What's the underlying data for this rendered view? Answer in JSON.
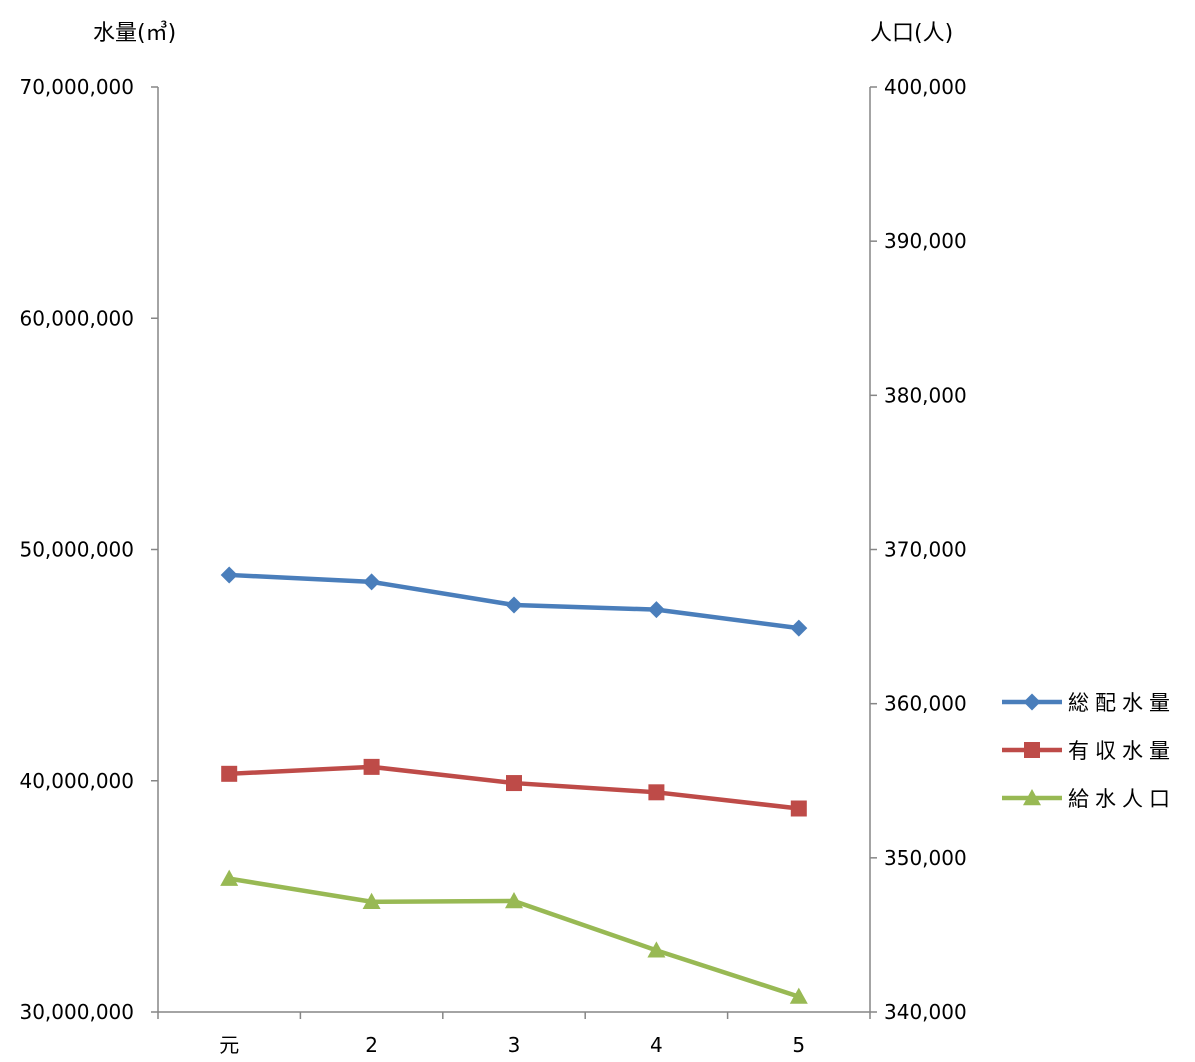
{
  "chart_data": {
    "type": "line",
    "categories": [
      "元",
      "2",
      "3",
      "4",
      "5"
    ],
    "left_axis": {
      "title": "水量(㎥)",
      "range": [
        30000000,
        70000000
      ],
      "ticks": [
        {
          "value": 70000000,
          "label": "70,000,000"
        },
        {
          "value": 60000000,
          "label": "60,000,000"
        },
        {
          "value": 50000000,
          "label": "50,000,000"
        },
        {
          "value": 40000000,
          "label": "40,000,000"
        },
        {
          "value": 30000000,
          "label": "30,000,000"
        }
      ]
    },
    "right_axis": {
      "title": "人口(人)",
      "range": [
        340000,
        400000
      ],
      "ticks": [
        {
          "value": 400000,
          "label": "400,000"
        },
        {
          "value": 390000,
          "label": "390,000"
        },
        {
          "value": 380000,
          "label": "380,000"
        },
        {
          "value": 370000,
          "label": "370,000"
        },
        {
          "value": 360000,
          "label": "360,000"
        },
        {
          "value": 350000,
          "label": "350,000"
        },
        {
          "value": 340000,
          "label": "340,000"
        }
      ]
    },
    "series": [
      {
        "name": "総配水量",
        "axis": "left",
        "marker": "diamond",
        "color": "#4a7ebb",
        "values": [
          48900000,
          48600000,
          47600000,
          47400000,
          46600000
        ]
      },
      {
        "name": "有収水量",
        "axis": "left",
        "marker": "square",
        "color": "#be4b48",
        "values": [
          40300000,
          40600000,
          39900000,
          39500000,
          38800000
        ]
      },
      {
        "name": "給水人口",
        "axis": "right",
        "marker": "triangle",
        "color": "#98b954",
        "values": [
          348650,
          347150,
          347200,
          344000,
          341000
        ]
      }
    ],
    "grid": false,
    "legend_position": "right"
  }
}
